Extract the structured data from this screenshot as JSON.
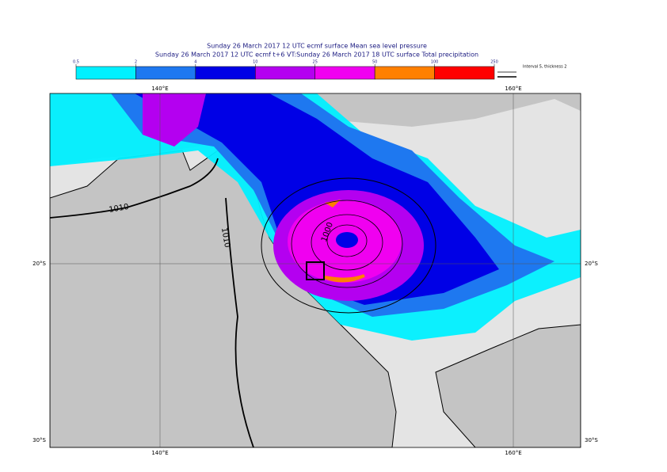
{
  "header": {
    "title_lines": [
      "Sunday 26 March 2017 12 UTC ecmf surface  Mean sea level pressure",
      "Sunday 26 March 2017 12 UTC ecmf t+6 VT:Sunday 26 March 2017 18 UTC surface  Total precipitation"
    ]
  },
  "colorbar": {
    "bins": [
      0.5,
      2,
      4,
      10,
      25,
      50,
      100,
      250
    ],
    "colors": [
      "#00f0ff",
      "#1e78f0",
      "#0000e6",
      "#b400f0",
      "#f000f0",
      "#ff8000",
      "#ff0000"
    ]
  },
  "interval_note": "Interval 5, thickness 2",
  "map": {
    "lon_labels": [
      "140°E",
      "160°E"
    ],
    "lat_labels": [
      "20°S",
      "30°S"
    ],
    "contour_labels": [
      "1010",
      "1010",
      "1000"
    ]
  }
}
